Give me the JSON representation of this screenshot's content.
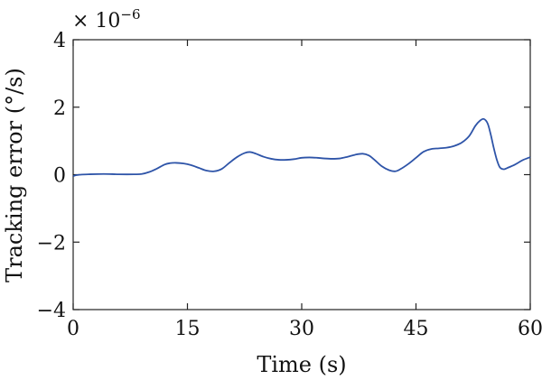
{
  "chart_data": {
    "type": "line",
    "title": "",
    "xlabel": "Time (s)",
    "ylabel": "Tracking error (°/s)",
    "exponent_label": {
      "prefix": "× 10",
      "power": "−6"
    },
    "xlim": [
      0,
      60
    ],
    "ylim": [
      -4,
      4
    ],
    "xticks": [
      0,
      15,
      30,
      45,
      60
    ],
    "xtick_labels": [
      "0",
      "15",
      "30",
      "45",
      "60"
    ],
    "yticks": [
      -4,
      -2,
      0,
      2,
      4
    ],
    "ytick_labels": [
      "−4",
      "−2",
      "0",
      "2",
      "4"
    ],
    "grid": false,
    "series": [
      {
        "color": "#2e54a8",
        "x": [
          0,
          0.3,
          1,
          2,
          4,
          6,
          8,
          9,
          10,
          11,
          12,
          12.7,
          13.5,
          14.5,
          15.5,
          16.5,
          17.5,
          18.5,
          19.5,
          20.5,
          21.5,
          22.5,
          23.2,
          24,
          25,
          26,
          27,
          28,
          29,
          30,
          31,
          32,
          33,
          34,
          35,
          36,
          37,
          38,
          38.8,
          39.5,
          40.5,
          41.5,
          42.3,
          43,
          44,
          45,
          46,
          47,
          48,
          49,
          50,
          51,
          52,
          52.8,
          53.4,
          53.9,
          54.4,
          54.8,
          55.2,
          55.6,
          56,
          56.5,
          57,
          58,
          59,
          60
        ],
        "y": [
          -0.05,
          -0.02,
          0.0,
          0.01,
          0.02,
          0.01,
          0.01,
          0.02,
          0.08,
          0.18,
          0.3,
          0.34,
          0.35,
          0.33,
          0.28,
          0.2,
          0.12,
          0.1,
          0.17,
          0.35,
          0.52,
          0.64,
          0.67,
          0.62,
          0.53,
          0.47,
          0.44,
          0.44,
          0.46,
          0.5,
          0.51,
          0.5,
          0.48,
          0.47,
          0.48,
          0.53,
          0.59,
          0.62,
          0.57,
          0.45,
          0.25,
          0.13,
          0.1,
          0.17,
          0.32,
          0.5,
          0.68,
          0.76,
          0.78,
          0.8,
          0.85,
          0.95,
          1.15,
          1.45,
          1.6,
          1.65,
          1.52,
          1.2,
          0.8,
          0.45,
          0.22,
          0.16,
          0.2,
          0.3,
          0.43,
          0.52
        ]
      }
    ]
  }
}
